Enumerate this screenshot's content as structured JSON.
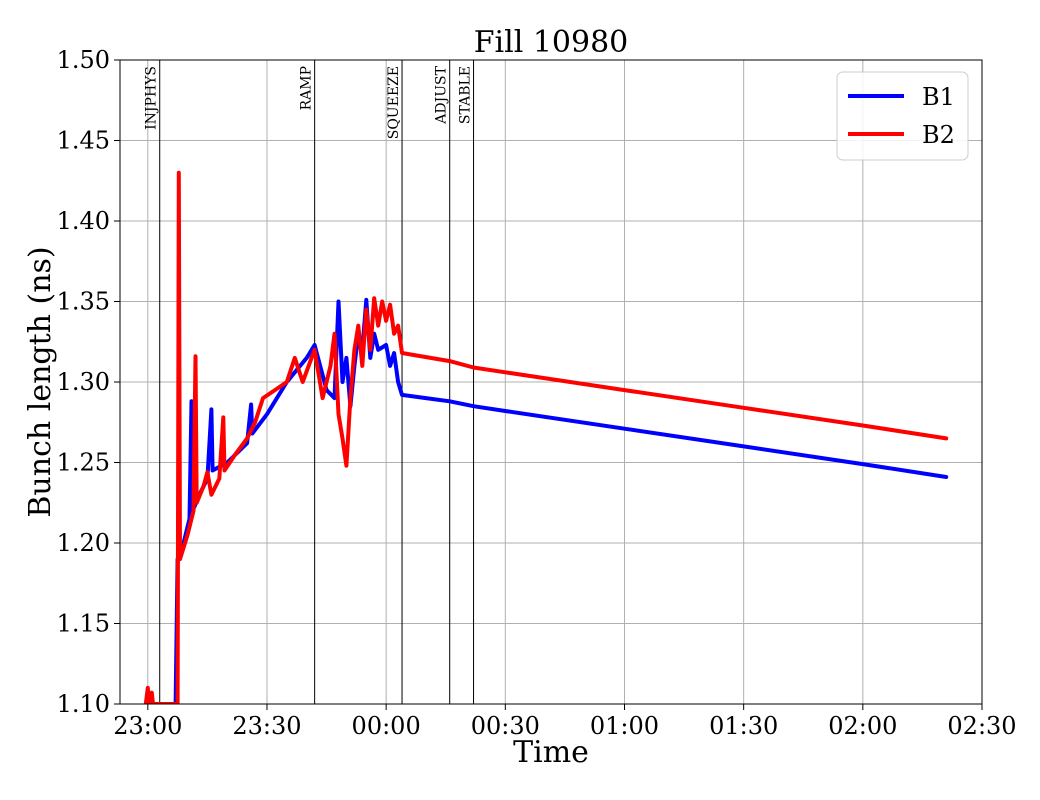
{
  "chart_data": {
    "type": "line",
    "title": "Fill 10980",
    "xlabel": "Time",
    "ylabel": "Bunch length (ns)",
    "x_unit": "time of day (HH:MM), day boundary after 23:59",
    "xlim": [
      "22:53",
      "02:30"
    ],
    "ylim": [
      1.1,
      1.5
    ],
    "grid": true,
    "legend_position": "top-right",
    "x_ticks": [
      "23:00",
      "23:30",
      "00:00",
      "00:30",
      "01:00",
      "01:30",
      "02:00",
      "02:30"
    ],
    "y_ticks": [
      "1.10",
      "1.15",
      "1.20",
      "1.25",
      "1.30",
      "1.35",
      "1.40",
      "1.45",
      "1.50"
    ],
    "phases": [
      {
        "label": "INJPHYS",
        "time": "23:03"
      },
      {
        "label": "RAMP",
        "time": "23:42"
      },
      {
        "label": "SQUEEZE",
        "time": "00:04"
      },
      {
        "label": "ADJUST",
        "time": "00:16"
      },
      {
        "label": "STABLE",
        "time": "00:22"
      }
    ],
    "series": [
      {
        "name": "B1",
        "color": "#0000ff",
        "points": [
          [
            "23:07",
            1.1
          ],
          [
            "23:07.5",
            1.19
          ],
          [
            "23:09",
            1.2
          ],
          [
            "23:10.5",
            1.215
          ],
          [
            "23:11",
            1.288
          ],
          [
            "23:11.3",
            1.22
          ],
          [
            "23:13",
            1.23
          ],
          [
            "23:15",
            1.24
          ],
          [
            "23:16",
            1.283
          ],
          [
            "23:16.3",
            1.245
          ],
          [
            "23:20",
            1.25
          ],
          [
            "23:25",
            1.262
          ],
          [
            "23:26",
            1.286
          ],
          [
            "23:26.3",
            1.268
          ],
          [
            "23:30",
            1.28
          ],
          [
            "23:35",
            1.3
          ],
          [
            "23:40",
            1.315
          ],
          [
            "23:42",
            1.323
          ],
          [
            "23:45",
            1.295
          ],
          [
            "23:47",
            1.29
          ],
          [
            "23:48",
            1.35
          ],
          [
            "23:49",
            1.3
          ],
          [
            "23:50",
            1.315
          ],
          [
            "23:51",
            1.285
          ],
          [
            "23:52",
            1.31
          ],
          [
            "23:53",
            1.33
          ],
          [
            "23:54",
            1.32
          ],
          [
            "23:55",
            1.351
          ],
          [
            "23:56",
            1.315
          ],
          [
            "23:57",
            1.33
          ],
          [
            "23:58",
            1.32
          ],
          [
            "00:00",
            1.323
          ],
          [
            "00:01",
            1.31
          ],
          [
            "00:02",
            1.318
          ],
          [
            "00:03",
            1.3
          ],
          [
            "00:04",
            1.292
          ],
          [
            "00:10",
            1.29
          ],
          [
            "00:16",
            1.288
          ],
          [
            "00:22",
            1.285
          ],
          [
            "00:30",
            1.282
          ],
          [
            "01:00",
            1.271
          ],
          [
            "01:30",
            1.26
          ],
          [
            "02:00",
            1.249
          ],
          [
            "02:21",
            1.241
          ]
        ]
      },
      {
        "name": "B2",
        "color": "#ff0000",
        "points": [
          [
            "22:59.5",
            1.1
          ],
          [
            "23:00",
            1.11
          ],
          [
            "23:00.3",
            1.1
          ],
          [
            "23:01",
            1.107
          ],
          [
            "23:01.3",
            1.1
          ],
          [
            "23:07.5",
            1.1
          ],
          [
            "23:07.8",
            1.43
          ],
          [
            "23:08.1",
            1.19
          ],
          [
            "23:10",
            1.205
          ],
          [
            "23:11.5",
            1.22
          ],
          [
            "23:12",
            1.316
          ],
          [
            "23:12.3",
            1.225
          ],
          [
            "23:14",
            1.235
          ],
          [
            "23:15",
            1.244
          ],
          [
            "23:16",
            1.23
          ],
          [
            "23:18",
            1.24
          ],
          [
            "23:19",
            1.278
          ],
          [
            "23:19.3",
            1.245
          ],
          [
            "23:22",
            1.255
          ],
          [
            "23:25",
            1.265
          ],
          [
            "23:27",
            1.275
          ],
          [
            "23:29",
            1.29
          ],
          [
            "23:32",
            1.295
          ],
          [
            "23:35",
            1.3
          ],
          [
            "23:37",
            1.315
          ],
          [
            "23:39",
            1.3
          ],
          [
            "23:42",
            1.32
          ],
          [
            "23:44",
            1.29
          ],
          [
            "23:46",
            1.31
          ],
          [
            "23:47",
            1.33
          ],
          [
            "23:48",
            1.28
          ],
          [
            "23:49",
            1.265
          ],
          [
            "23:50",
            1.248
          ],
          [
            "23:51",
            1.29
          ],
          [
            "23:52",
            1.32
          ],
          [
            "23:53",
            1.335
          ],
          [
            "23:54",
            1.31
          ],
          [
            "23:55",
            1.345
          ],
          [
            "23:56",
            1.32
          ],
          [
            "23:57",
            1.352
          ],
          [
            "23:58",
            1.335
          ],
          [
            "23:59",
            1.35
          ],
          [
            "00:00",
            1.338
          ],
          [
            "00:01",
            1.348
          ],
          [
            "00:02",
            1.33
          ],
          [
            "00:03",
            1.335
          ],
          [
            "00:04",
            1.318
          ],
          [
            "00:16",
            1.313
          ],
          [
            "00:22",
            1.309
          ],
          [
            "00:30",
            1.306
          ],
          [
            "01:00",
            1.295
          ],
          [
            "01:30",
            1.284
          ],
          [
            "02:00",
            1.273
          ],
          [
            "02:21",
            1.265
          ]
        ]
      }
    ]
  }
}
